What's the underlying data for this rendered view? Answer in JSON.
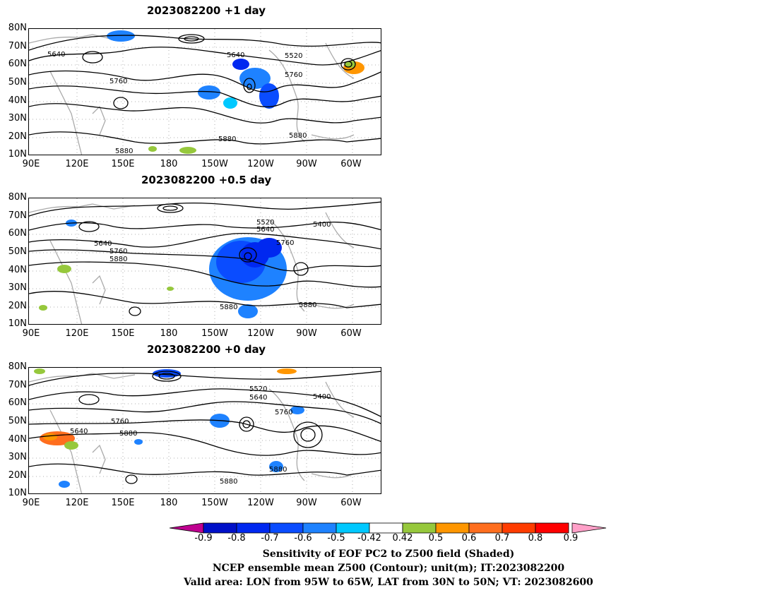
{
  "panels": [
    {
      "title": "2023082200  +1 day"
    },
    {
      "title": "2023082200  +0.5 day"
    },
    {
      "title": "2023082200  +0 day"
    }
  ],
  "lat_labels": [
    "80N",
    "70N",
    "60N",
    "50N",
    "40N",
    "30N",
    "20N",
    "10N"
  ],
  "lon_labels": [
    "90E",
    "120E",
    "150E",
    "180",
    "150W",
    "120W",
    "90W",
    "60W"
  ],
  "contour_labels": {
    "p0": [
      "5640",
      "5640",
      "5520",
      "5760",
      "5760",
      "5880",
      "5880",
      "5880"
    ],
    "p1": [
      "5520",
      "5640",
      "5400",
      "5640",
      "5760",
      "5880",
      "5760",
      "5880",
      "5880"
    ],
    "p2": [
      "5520",
      "5640",
      "5400",
      "5760",
      "5640",
      "5760",
      "5880",
      "5880",
      "5880"
    ]
  },
  "colorbar": {
    "ticks": [
      "-0.9",
      "-0.8",
      "-0.7",
      "-0.6",
      "-0.5",
      "-0.42",
      "0.42",
      "0.5",
      "0.6",
      "0.7",
      "0.8",
      "0.9"
    ],
    "colors": [
      "#bf0090",
      "#0010c8",
      "#0028f0",
      "#0a4cff",
      "#1e82ff",
      "#00c8ff",
      "#ffffff",
      "#96c83c",
      "#ff9600",
      "#ff6e1e",
      "#ff3c00",
      "#ff0000",
      "#ffa0c8"
    ]
  },
  "captions": [
    "Sensitivity of EOF PC2 to Z500 field (Shaded)",
    "NCEP ensemble mean Z500 (Contour); unit(m); IT:2023082200",
    "Valid area: LON from 95W to 65W, LAT from 30N to 50N; VT: 2023082600"
  ]
}
